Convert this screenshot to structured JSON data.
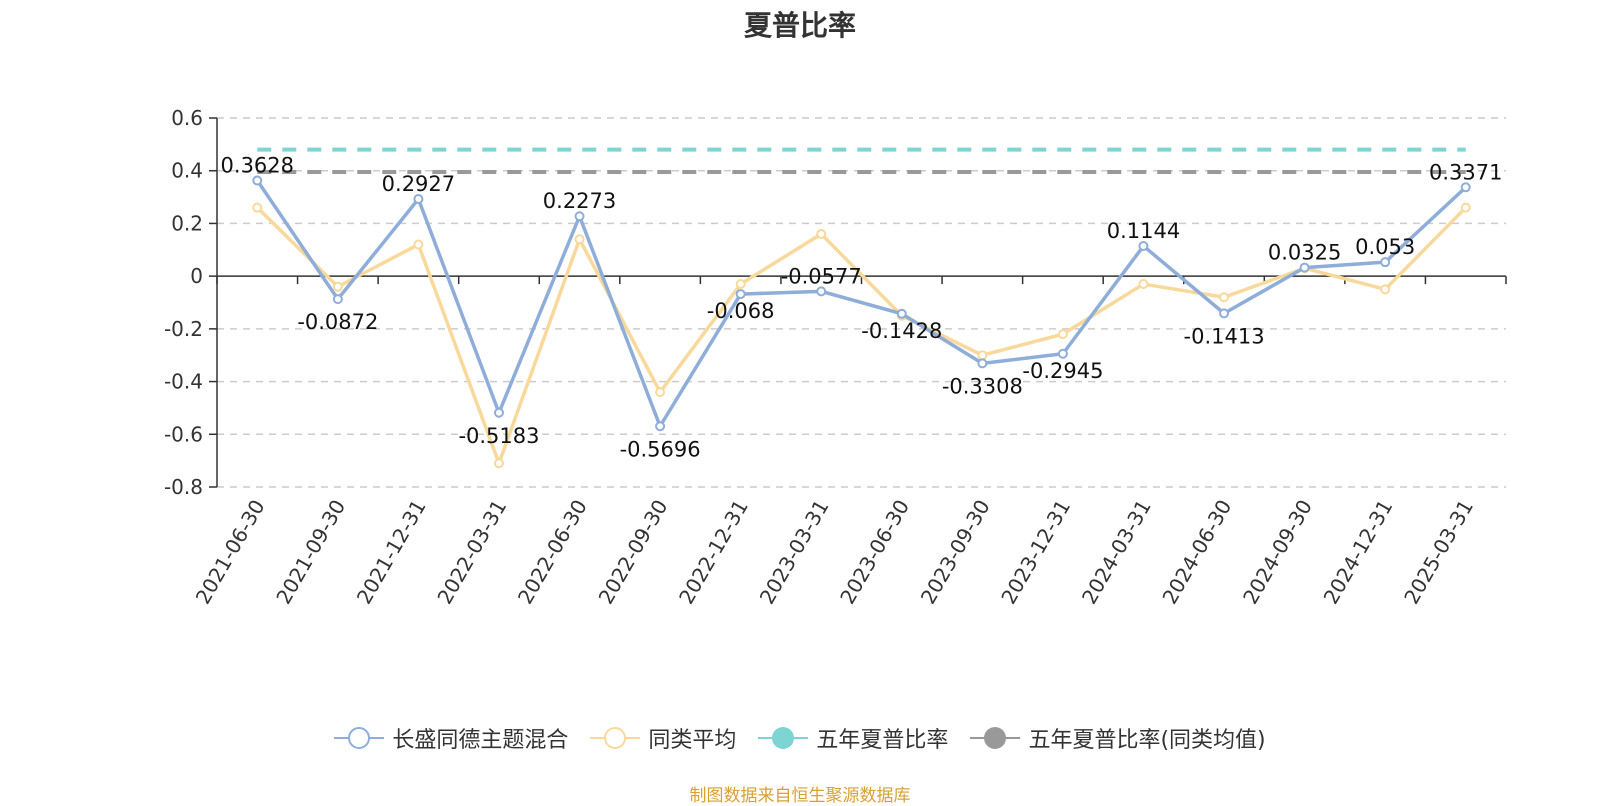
{
  "title": "夏普比率",
  "source": "制图数据来自恒生聚源数据库",
  "legend": [
    {
      "label": "长盛同德主题混合",
      "icon": "hollow-circle-line",
      "color": "#8eadd8"
    },
    {
      "label": "同类平均",
      "icon": "hollow-circle-line",
      "color": "#f9d99b"
    },
    {
      "label": "五年夏普比率",
      "icon": "filled-circle-line",
      "color": "#7ed3d3"
    },
    {
      "label": "五年夏普比率(同类均值)",
      "icon": "filled-circle-line",
      "color": "#999999"
    }
  ],
  "chart_data": {
    "type": "line",
    "categories": [
      "2021-06-30",
      "2021-09-30",
      "2021-12-31",
      "2022-03-31",
      "2022-06-30",
      "2022-09-30",
      "2022-12-31",
      "2023-03-31",
      "2023-06-30",
      "2023-09-30",
      "2023-12-31",
      "2024-03-31",
      "2024-06-30",
      "2024-09-30",
      "2024-12-31",
      "2025-03-31"
    ],
    "ylim": [
      -0.8,
      0.6
    ],
    "yticks": [
      0.6,
      0.4,
      0.2,
      0,
      -0.2,
      -0.4,
      -0.6,
      -0.8
    ],
    "grid": true,
    "legend_position": "bottom",
    "series": [
      {
        "name": "长盛同德主题混合",
        "color": "#8eadd8",
        "values": [
          0.3628,
          -0.0872,
          0.2927,
          -0.5183,
          0.2273,
          -0.5696,
          -0.068,
          -0.0577,
          -0.1428,
          -0.3308,
          -0.2945,
          0.1144,
          -0.1413,
          0.0325,
          0.053,
          0.3371
        ],
        "labels": [
          "0.3628",
          "-0.0872",
          "0.2927",
          "-0.5183",
          "0.2273",
          "-0.5696",
          "-0.068",
          "-0.0577",
          "-0.1428",
          "-0.3308",
          "-0.2945",
          "0.1144",
          "-0.1413",
          "0.0325",
          "0.053",
          "0.3371"
        ]
      },
      {
        "name": "同类平均",
        "color": "#f9d99b",
        "values": [
          0.26,
          -0.04,
          0.12,
          -0.71,
          0.14,
          -0.44,
          -0.03,
          0.16,
          -0.15,
          -0.3,
          -0.22,
          -0.03,
          -0.08,
          0.03,
          -0.05,
          0.26
        ]
      }
    ],
    "reference_lines": [
      {
        "name": "五年夏普比率",
        "value": 0.48,
        "color": "#7ed3d3"
      },
      {
        "name": "五年夏普比率(同类均值)",
        "value": 0.395,
        "color": "#999999"
      }
    ]
  }
}
